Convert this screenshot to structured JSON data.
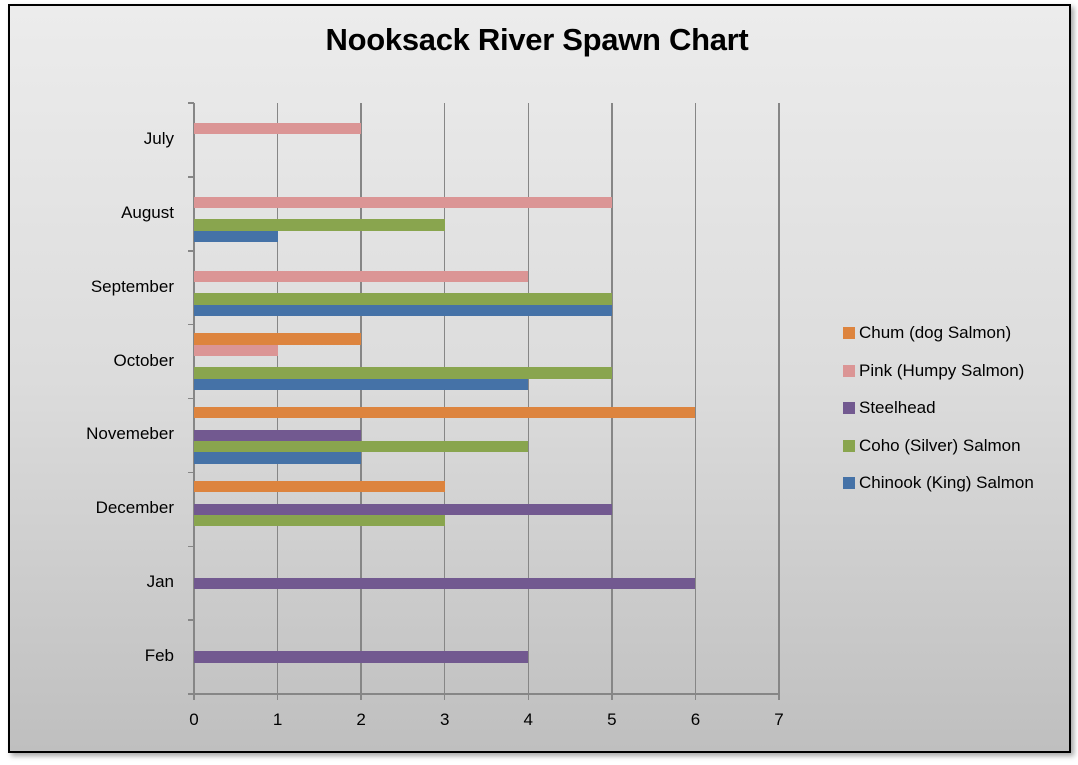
{
  "chart_data": {
    "type": "bar",
    "orientation": "horizontal",
    "title": "Nooksack River Spawn Chart",
    "xlabel": "",
    "ylabel": "",
    "xlim": [
      0,
      7
    ],
    "x_ticks": [
      "0",
      "1",
      "2",
      "3",
      "4",
      "5",
      "6",
      "7"
    ],
    "grid": "vertical major gridlines",
    "legend_position": "right",
    "categories": [
      "July",
      "August",
      "September",
      "October",
      "Novemeber",
      "December",
      "Jan",
      "Feb"
    ],
    "series": [
      {
        "name": "Chum (dog Salmon)",
        "color": "#dd843e",
        "values": [
          0,
          0,
          0,
          2,
          6,
          3,
          0,
          0
        ]
      },
      {
        "name": "Pink (Humpy Salmon)",
        "color": "#db9595",
        "values": [
          2,
          5,
          4,
          1,
          0,
          0,
          0,
          0
        ]
      },
      {
        "name": "Steelhead",
        "color": "#725990",
        "values": [
          0,
          0,
          0,
          0,
          2,
          5,
          6,
          4
        ]
      },
      {
        "name": "Coho (Silver) Salmon",
        "color": "#89a54e",
        "values": [
          0,
          3,
          5,
          5,
          4,
          3,
          0,
          0
        ]
      },
      {
        "name": "Chinook (King) Salmon",
        "color": "#4572a7",
        "values": [
          0,
          1,
          5,
          4,
          2,
          0,
          0,
          0
        ]
      }
    ]
  },
  "legend": {
    "items": [
      {
        "label": "Chum (dog Salmon)",
        "color": "#dd843e"
      },
      {
        "label": "Pink (Humpy Salmon)",
        "color": "#db9595"
      },
      {
        "label": "Steelhead",
        "color": "#725990"
      },
      {
        "label": "Coho (Silver) Salmon",
        "color": "#89a54e"
      },
      {
        "label": "Chinook (King) Salmon",
        "color": "#4572a7"
      }
    ]
  }
}
